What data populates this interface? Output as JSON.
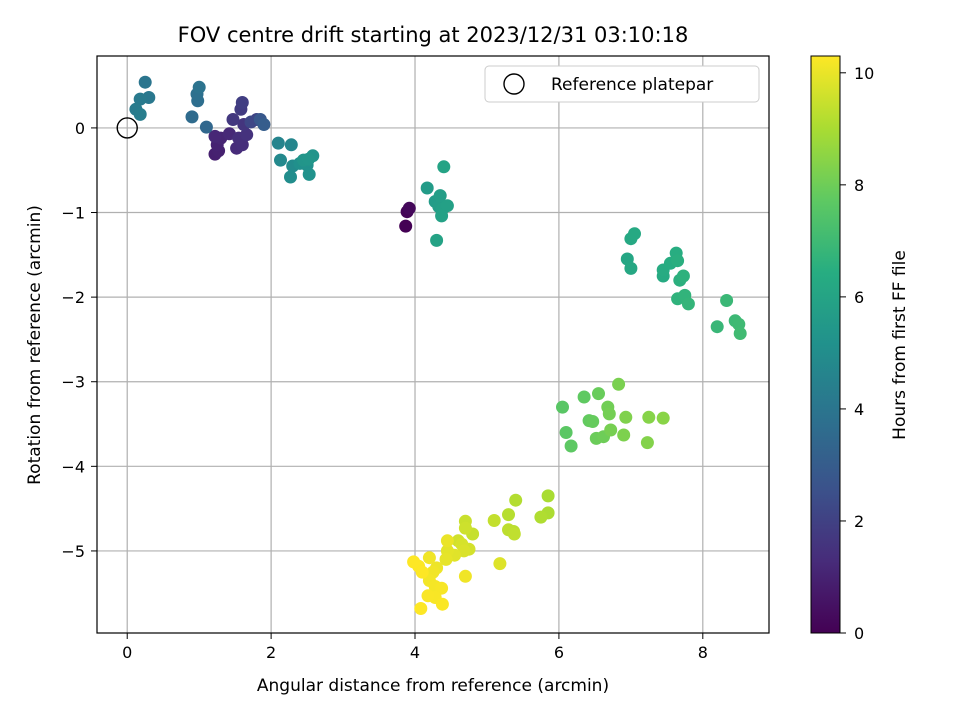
{
  "chart_data": {
    "type": "scatter",
    "title": "FOV centre drift starting at 2023/12/31 03:10:18",
    "xlabel": "Angular distance from reference (arcmin)",
    "ylabel": "Rotation from reference (arcmin)",
    "xlim": [
      -0.42,
      8.92
    ],
    "ylim": [
      -5.97,
      0.85
    ],
    "xticks": [
      0,
      2,
      4,
      6,
      8
    ],
    "yticks": [
      0,
      -1,
      -2,
      -3,
      -4,
      -5
    ],
    "grid": true,
    "colormap": "viridis",
    "colorbar": {
      "label": "Hours from first FF file",
      "range": [
        0,
        10.3
      ],
      "ticks": [
        0,
        2,
        4,
        6,
        8,
        10
      ]
    },
    "legend": {
      "placement": "top-right",
      "entries": [
        {
          "label": "Reference platepar",
          "marker": "hollow-circle",
          "x": 0,
          "y": 0
        }
      ]
    },
    "points": [
      [
        3.87,
        -1.16,
        0.0
      ],
      [
        3.89,
        -0.99,
        0.1
      ],
      [
        3.92,
        -0.95,
        0.2
      ],
      [
        1.22,
        -0.31,
        0.9
      ],
      [
        1.27,
        -0.27,
        0.95
      ],
      [
        1.25,
        -0.2,
        1.0
      ],
      [
        1.3,
        -0.12,
        1.1
      ],
      [
        1.22,
        -0.1,
        1.15
      ],
      [
        1.42,
        -0.07,
        1.2
      ],
      [
        1.52,
        -0.24,
        1.3
      ],
      [
        1.6,
        -0.2,
        1.35
      ],
      [
        1.55,
        -0.12,
        1.4
      ],
      [
        1.66,
        -0.08,
        1.5
      ],
      [
        1.62,
        0.04,
        1.6
      ],
      [
        1.47,
        0.1,
        1.7
      ],
      [
        1.58,
        0.22,
        1.8
      ],
      [
        1.6,
        0.3,
        1.9
      ],
      [
        1.8,
        0.1,
        2.1
      ],
      [
        1.72,
        0.07,
        2.2
      ],
      [
        1.85,
        0.1,
        2.8
      ],
      [
        1.9,
        0.04,
        3.0
      ],
      [
        1.1,
        0.01,
        3.4
      ],
      [
        0.9,
        0.13,
        3.6
      ],
      [
        0.98,
        0.32,
        3.7
      ],
      [
        0.97,
        0.4,
        3.8
      ],
      [
        1.0,
        0.48,
        3.9
      ],
      [
        0.25,
        0.54,
        4.0
      ],
      [
        0.3,
        0.36,
        4.1
      ],
      [
        0.18,
        0.34,
        4.2
      ],
      [
        0.12,
        0.22,
        4.25
      ],
      [
        0.18,
        0.16,
        4.3
      ],
      [
        2.1,
        -0.18,
        4.6
      ],
      [
        2.28,
        -0.2,
        4.7
      ],
      [
        2.13,
        -0.38,
        4.8
      ],
      [
        2.3,
        -0.45,
        4.9
      ],
      [
        2.27,
        -0.58,
        5.0
      ],
      [
        2.4,
        -0.42,
        5.1
      ],
      [
        2.5,
        -0.44,
        5.15
      ],
      [
        2.53,
        -0.55,
        5.2
      ],
      [
        2.58,
        -0.33,
        5.3
      ],
      [
        2.45,
        -0.38,
        5.35
      ],
      [
        2.52,
        -0.37,
        5.4
      ],
      [
        4.17,
        -0.71,
        5.6
      ],
      [
        4.28,
        -0.87,
        5.65
      ],
      [
        4.33,
        -0.93,
        5.7
      ],
      [
        4.35,
        -0.8,
        5.75
      ],
      [
        4.38,
        -0.96,
        5.8
      ],
      [
        4.45,
        -0.92,
        5.85
      ],
      [
        4.37,
        -1.04,
        5.9
      ],
      [
        4.3,
        -1.33,
        5.95
      ],
      [
        4.4,
        -0.46,
        6.0
      ],
      [
        6.95,
        -1.55,
        6.1
      ],
      [
        7.0,
        -1.66,
        6.15
      ],
      [
        7.0,
        -1.31,
        6.2
      ],
      [
        7.05,
        -1.25,
        6.25
      ],
      [
        7.45,
        -1.75,
        6.3
      ],
      [
        7.45,
        -1.68,
        6.35
      ],
      [
        7.55,
        -1.6,
        6.4
      ],
      [
        7.63,
        -1.48,
        6.45
      ],
      [
        7.65,
        -1.57,
        6.5
      ],
      [
        7.68,
        -1.8,
        6.55
      ],
      [
        7.73,
        -1.75,
        6.6
      ],
      [
        7.65,
        -2.02,
        6.65
      ],
      [
        7.75,
        -1.98,
        6.7
      ],
      [
        7.8,
        -2.08,
        6.75
      ],
      [
        8.2,
        -2.35,
        6.85
      ],
      [
        8.33,
        -2.04,
        6.9
      ],
      [
        8.45,
        -2.28,
        6.95
      ],
      [
        8.5,
        -2.32,
        7.0
      ],
      [
        8.52,
        -2.43,
        7.05
      ],
      [
        6.05,
        -3.3,
        7.6
      ],
      [
        6.1,
        -3.6,
        7.65
      ],
      [
        6.17,
        -3.76,
        7.7
      ],
      [
        6.35,
        -3.18,
        7.75
      ],
      [
        6.42,
        -3.46,
        7.8
      ],
      [
        6.47,
        -3.47,
        7.85
      ],
      [
        6.55,
        -3.14,
        7.9
      ],
      [
        6.52,
        -3.67,
        7.95
      ],
      [
        6.62,
        -3.65,
        8.0
      ],
      [
        6.68,
        -3.3,
        8.05
      ],
      [
        6.7,
        -3.38,
        8.1
      ],
      [
        6.72,
        -3.57,
        8.15
      ],
      [
        6.83,
        -3.03,
        8.2
      ],
      [
        6.9,
        -3.63,
        8.25
      ],
      [
        6.93,
        -3.42,
        8.3
      ],
      [
        7.23,
        -3.72,
        8.35
      ],
      [
        7.25,
        -3.42,
        8.4
      ],
      [
        7.45,
        -3.43,
        8.45
      ],
      [
        5.85,
        -4.35,
        9.0
      ],
      [
        5.85,
        -4.55,
        9.05
      ],
      [
        5.75,
        -4.6,
        9.1
      ],
      [
        5.4,
        -4.4,
        9.15
      ],
      [
        5.3,
        -4.57,
        9.2
      ],
      [
        5.37,
        -4.77,
        9.25
      ],
      [
        5.3,
        -4.75,
        9.3
      ],
      [
        5.38,
        -4.8,
        9.35
      ],
      [
        5.1,
        -4.64,
        9.4
      ],
      [
        4.8,
        -4.8,
        9.45
      ],
      [
        4.7,
        -4.65,
        9.5
      ],
      [
        4.7,
        -4.73,
        9.55
      ],
      [
        4.6,
        -4.88,
        9.6
      ],
      [
        4.75,
        -4.98,
        9.65
      ],
      [
        4.65,
        -4.92,
        9.7
      ],
      [
        4.68,
        -5.0,
        9.75
      ],
      [
        5.18,
        -5.15,
        9.8
      ],
      [
        4.55,
        -5.05,
        9.85
      ],
      [
        4.45,
        -5.0,
        9.9
      ],
      [
        4.43,
        -5.1,
        9.95
      ],
      [
        4.45,
        -4.88,
        10.0
      ],
      [
        4.3,
        -5.2,
        10.05
      ],
      [
        4.2,
        -5.08,
        10.1
      ],
      [
        4.25,
        -5.25,
        10.12
      ],
      [
        4.2,
        -5.35,
        10.15
      ],
      [
        4.28,
        -5.42,
        10.18
      ],
      [
        4.37,
        -5.44,
        10.2
      ],
      [
        4.28,
        -5.55,
        10.22
      ],
      [
        4.18,
        -5.53,
        10.24
      ],
      [
        4.38,
        -5.63,
        10.26
      ],
      [
        4.05,
        -5.18,
        10.28
      ],
      [
        3.98,
        -5.13,
        10.3
      ],
      [
        4.1,
        -5.25,
        10.3
      ],
      [
        4.08,
        -5.68,
        10.3
      ],
      [
        4.7,
        -5.3,
        10.1
      ]
    ]
  }
}
